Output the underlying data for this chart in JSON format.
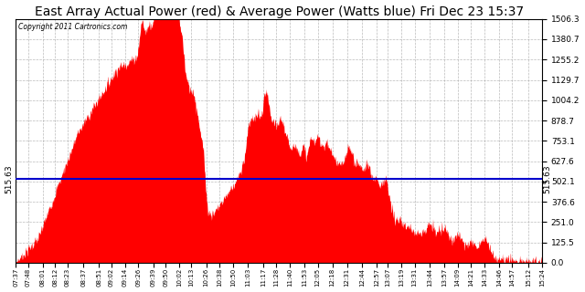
{
  "title": "East Array Actual Power (red) & Average Power (Watts blue) Fri Dec 23 15:37",
  "copyright_text": "Copyright 2011 Cartronics.com",
  "average_power": 515.63,
  "y_max": 1506.3,
  "y_min": 0.0,
  "y_ticks": [
    0.0,
    125.5,
    251.0,
    376.6,
    502.1,
    627.6,
    753.1,
    878.7,
    1004.2,
    1129.7,
    1255.2,
    1380.7,
    1506.3
  ],
  "x_labels": [
    "07:37",
    "07:48",
    "08:01",
    "08:12",
    "08:23",
    "08:37",
    "08:51",
    "09:02",
    "09:14",
    "09:26",
    "09:39",
    "09:50",
    "10:02",
    "10:13",
    "10:26",
    "10:38",
    "10:50",
    "11:03",
    "11:17",
    "11:28",
    "11:40",
    "11:53",
    "12:05",
    "12:18",
    "12:31",
    "12:44",
    "12:57",
    "13:07",
    "13:19",
    "13:31",
    "13:44",
    "13:57",
    "14:09",
    "14:21",
    "14:33",
    "14:46",
    "14:57",
    "15:12",
    "15:24"
  ],
  "fill_color": "#FF0000",
  "line_color": "#0000CC",
  "background_color": "#FFFFFF",
  "grid_color": "#AAAAAA",
  "title_fontsize": 10,
  "avg_label_fontsize": 7
}
